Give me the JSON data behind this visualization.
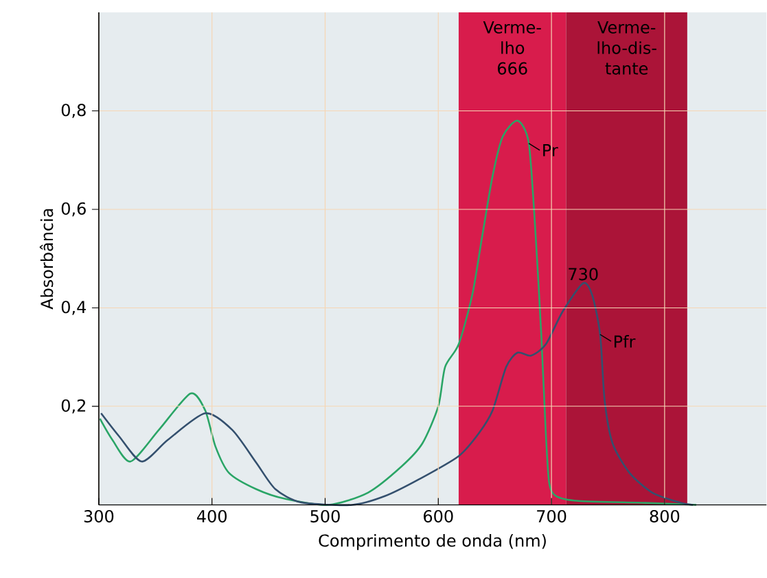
{
  "chart_data": {
    "type": "line",
    "xlabel": "Comprimento de onda (nm)",
    "ylabel": "Absorbância",
    "xlim": [
      300,
      890
    ],
    "ylim": [
      0,
      1
    ],
    "xticks": [
      300,
      400,
      500,
      600,
      700,
      800
    ],
    "yticks": [
      {
        "value": 0.2,
        "label": "0,2"
      },
      {
        "value": 0.4,
        "label": "0,4"
      },
      {
        "value": 0.6,
        "label": "0,6"
      },
      {
        "value": 0.8,
        "label": "0,8"
      }
    ],
    "grid": true,
    "line_style": "solid",
    "marker": "none",
    "bands": [
      {
        "axis": "x",
        "from": 618,
        "to": 713,
        "label": "Verme-\nlho\n666",
        "color": "#d81c4c"
      },
      {
        "axis": "x",
        "from": 713,
        "to": 820,
        "label": "Verme-\nlho-dis-\ntante",
        "color": "#ab1438"
      }
    ],
    "series": [
      {
        "name": "Pr",
        "color": "#2aa566",
        "x": [
          301,
          312,
          328,
          353,
          381,
          394,
          403,
          415,
          439,
          465,
          503,
          538,
          568,
          586,
          600,
          606,
          618,
          630,
          639,
          648,
          657,
          670,
          680,
          686,
          691,
          695,
          698,
          704,
          724,
          783,
          828
        ],
        "values": [
          0.175,
          0.132,
          0.088,
          0.152,
          0.226,
          0.192,
          0.119,
          0.065,
          0.032,
          0.012,
          0,
          0.025,
          0.079,
          0.125,
          0.2,
          0.28,
          0.326,
          0.426,
          0.548,
          0.668,
          0.748,
          0.78,
          0.734,
          0.548,
          0.346,
          0.146,
          0.045,
          0.018,
          0.008,
          0.004,
          0
        ]
      },
      {
        "name": "Pfr",
        "color": "#34506e",
        "x": [
          302,
          318,
          338,
          361,
          394,
          418,
          439,
          456,
          479,
          524,
          553,
          583,
          618,
          636,
          648,
          660,
          670,
          682,
          695,
          710,
          728,
          736,
          743,
          747,
          754,
          769,
          789,
          813,
          825
        ],
        "values": [
          0.186,
          0.139,
          0.088,
          0.132,
          0.186,
          0.152,
          0.086,
          0.032,
          0.005,
          0,
          0.018,
          0.052,
          0.099,
          0.146,
          0.192,
          0.28,
          0.309,
          0.303,
          0.326,
          0.393,
          0.45,
          0.426,
          0.346,
          0.212,
          0.125,
          0.065,
          0.025,
          0.005,
          0
        ]
      }
    ],
    "annotations": [
      {
        "text": "730",
        "x": 728,
        "y": 0.45
      }
    ]
  }
}
